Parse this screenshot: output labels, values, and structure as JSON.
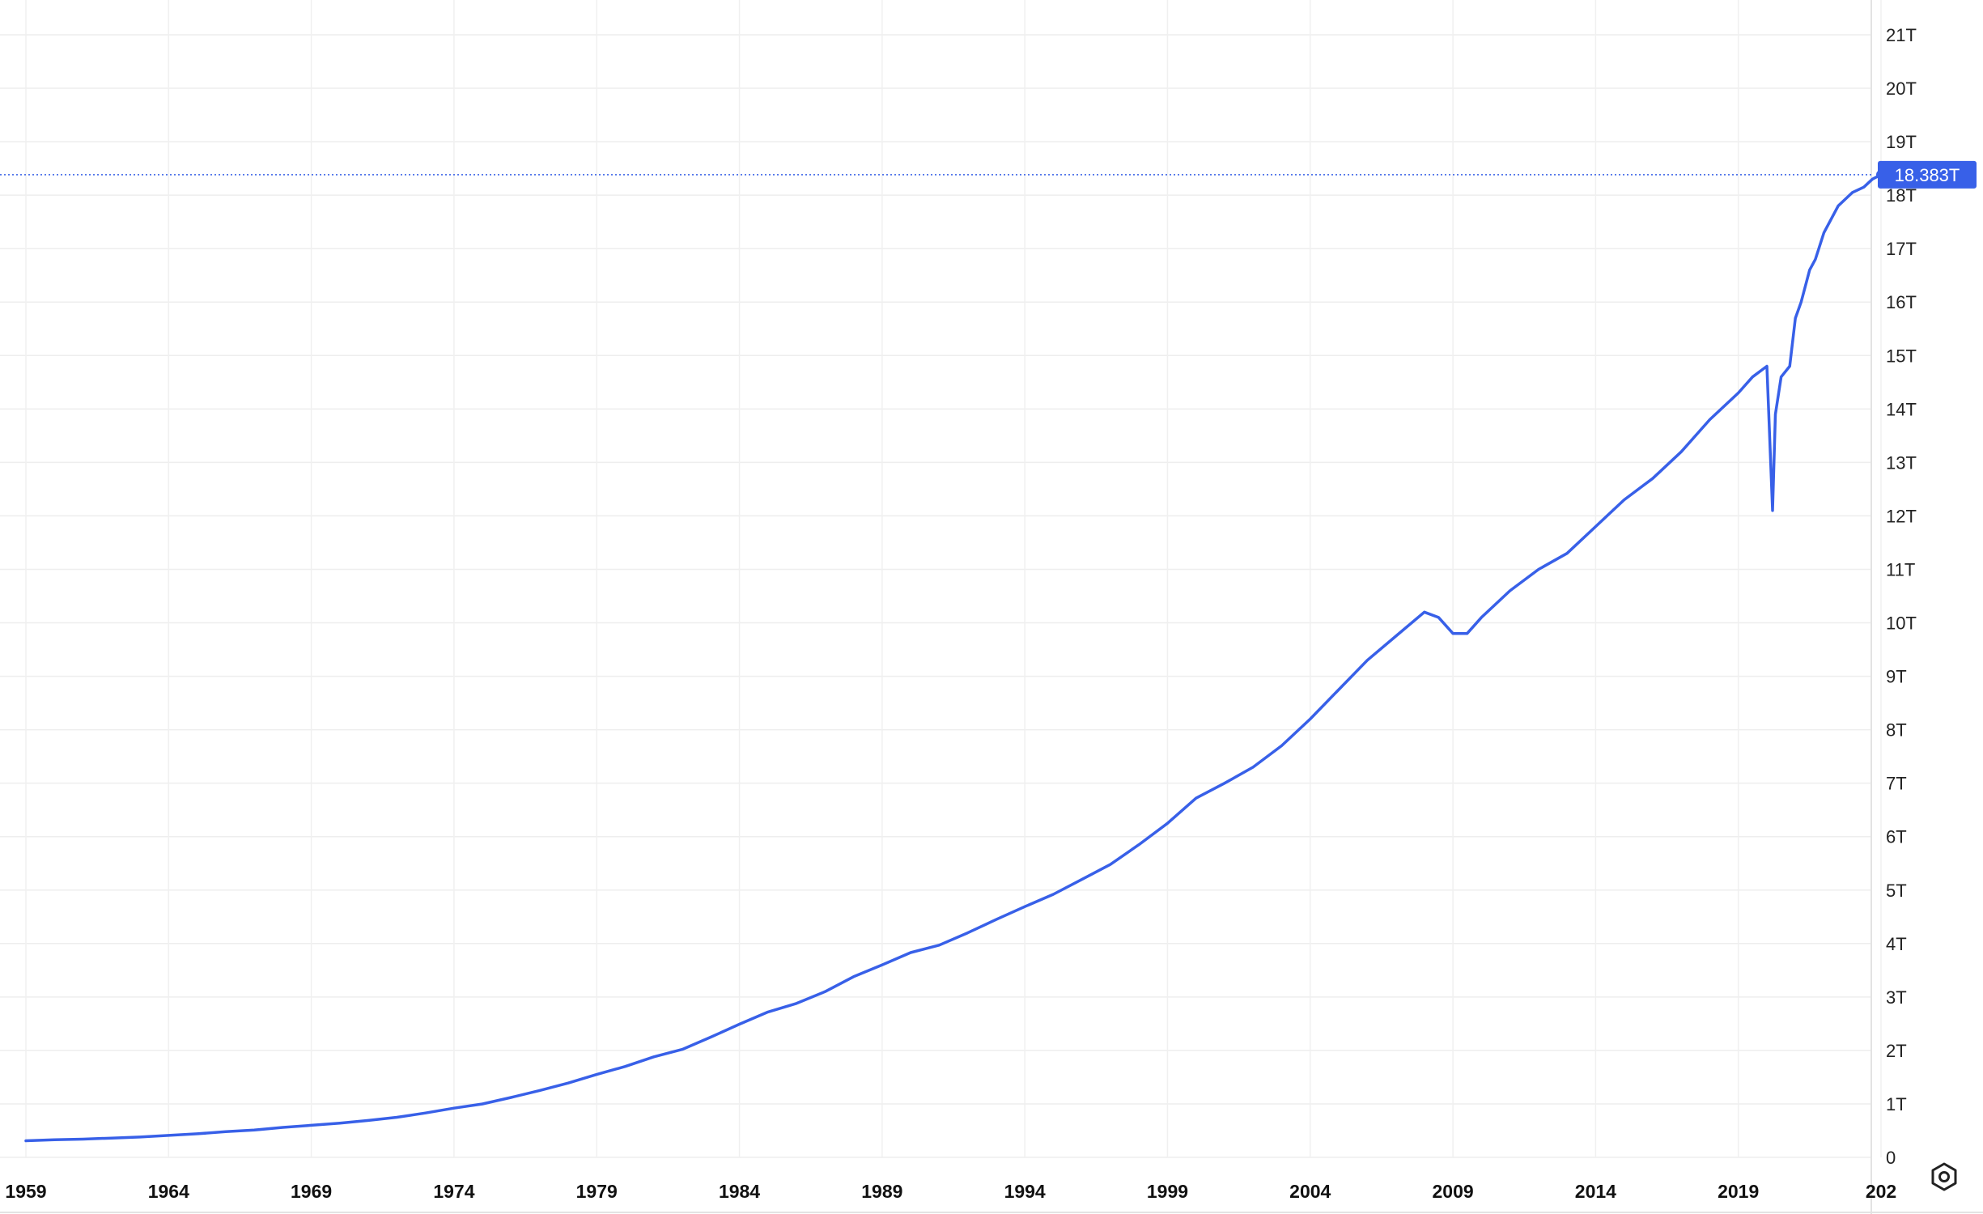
{
  "chart_data": {
    "type": "line",
    "title": "",
    "xlabel": "",
    "ylabel": "",
    "x_ticks": [
      "1959",
      "1964",
      "1969",
      "1974",
      "1979",
      "1984",
      "1989",
      "1994",
      "1999",
      "2004",
      "2009",
      "2014",
      "2019",
      "202"
    ],
    "y_ticks": [
      "0",
      "1T",
      "2T",
      "3T",
      "4T",
      "5T",
      "6T",
      "7T",
      "8T",
      "9T",
      "10T",
      "11T",
      "12T",
      "13T",
      "14T",
      "15T",
      "16T",
      "17T",
      "18T",
      "19T",
      "20T",
      "21T"
    ],
    "xlim": [
      1959,
      2024
    ],
    "ylim": [
      0,
      21
    ],
    "grid": true,
    "legend": "none",
    "line_color": "#3860e8",
    "last_value_label": "18.383T",
    "series": [
      {
        "x": [
          1959,
          1960,
          1961,
          1962,
          1963,
          1964,
          1965,
          1966,
          1967,
          1968,
          1969,
          1970,
          1971,
          1972,
          1973,
          1974,
          1975,
          1976,
          1977,
          1978,
          1979,
          1980,
          1981,
          1982,
          1983,
          1984,
          1985,
          1986,
          1987,
          1988,
          1989,
          1990,
          1991,
          1992,
          1993,
          1994,
          1995,
          1996,
          1997,
          1998,
          1999,
          2000,
          2001,
          2002,
          2003,
          2004,
          2005,
          2006,
          2007,
          2008,
          2008.5,
          2009,
          2009.5,
          2010,
          2011,
          2012,
          2013,
          2014,
          2015,
          2016,
          2017,
          2018,
          2019,
          2019.5,
          2020.0,
          2020.2,
          2020.3,
          2020.5,
          2020.8,
          2021.0,
          2021.2,
          2021.4,
          2021.5,
          2021.7,
          2022.0,
          2022.5,
          2023.0,
          2023.4,
          2023.7,
          2024.0
        ],
        "values": [
          0.31,
          0.33,
          0.34,
          0.36,
          0.38,
          0.41,
          0.44,
          0.48,
          0.51,
          0.56,
          0.6,
          0.64,
          0.69,
          0.75,
          0.83,
          0.92,
          1.0,
          1.12,
          1.25,
          1.39,
          1.55,
          1.7,
          1.88,
          2.02,
          2.25,
          2.49,
          2.72,
          2.88,
          3.1,
          3.38,
          3.6,
          3.83,
          3.97,
          4.2,
          4.45,
          4.69,
          4.92,
          5.2,
          5.48,
          5.85,
          6.25,
          6.72,
          7.0,
          7.3,
          7.7,
          8.2,
          8.75,
          9.3,
          9.75,
          10.2,
          10.1,
          9.8,
          9.8,
          10.1,
          10.6,
          11.0,
          11.3,
          11.8,
          12.3,
          12.7,
          13.2,
          13.8,
          14.3,
          14.6,
          14.8,
          12.1,
          13.9,
          14.6,
          14.8,
          15.7,
          16.0,
          16.4,
          16.6,
          16.8,
          17.3,
          17.8,
          18.05,
          18.15,
          18.3,
          18.383
        ]
      }
    ]
  }
}
